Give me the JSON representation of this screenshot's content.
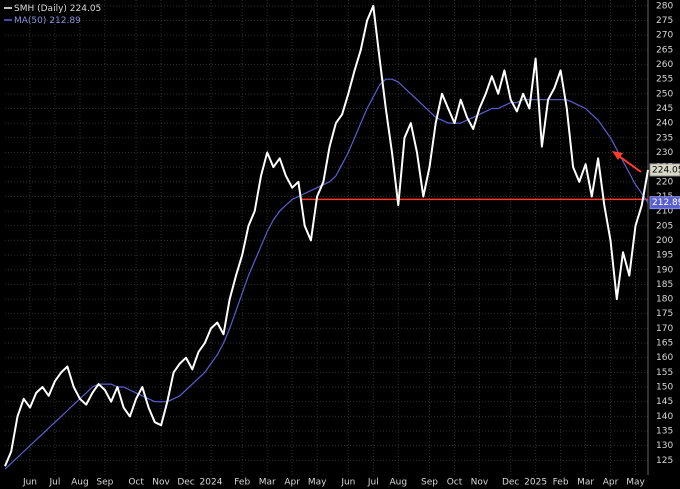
{
  "chart_data": {
    "type": "line",
    "categories": [
      null,
      null,
      null,
      null,
      "Jun",
      null,
      null,
      null,
      "Jul",
      null,
      null,
      null,
      "Aug",
      null,
      null,
      null,
      "Sep",
      null,
      null,
      null,
      null,
      "Oct",
      null,
      null,
      null,
      "Nov",
      null,
      null,
      null,
      "Dec",
      null,
      null,
      null,
      "2024",
      null,
      null,
      null,
      null,
      "Feb",
      null,
      null,
      null,
      "Mar",
      null,
      null,
      null,
      "Apr",
      null,
      null,
      null,
      "May",
      null,
      null,
      null,
      null,
      "Jun",
      null,
      null,
      null,
      "Jul",
      null,
      null,
      null,
      "Aug",
      null,
      null,
      null,
      null,
      "Sep",
      null,
      null,
      null,
      "Oct",
      null,
      null,
      null,
      "Nov",
      null,
      null,
      null,
      null,
      "Dec",
      null,
      null,
      null,
      "2025",
      null,
      null,
      null,
      "Feb",
      null,
      null,
      null,
      "Mar",
      null,
      null,
      null,
      "Apr",
      null,
      null,
      null,
      "May",
      null,
      null
    ],
    "series": [
      {
        "name": "SMH (Daily)",
        "color": "#ffffff",
        "values": [
          123,
          128,
          140,
          146,
          143,
          148,
          150,
          147,
          152,
          155,
          157,
          150,
          146,
          144,
          148,
          151,
          149,
          145,
          150,
          143,
          140,
          146,
          150,
          143,
          138,
          137,
          145,
          155,
          158,
          160,
          156,
          162,
          165,
          170,
          172,
          168,
          180,
          188,
          195,
          205,
          210,
          222,
          230,
          225,
          228,
          222,
          218,
          220,
          205,
          200,
          215,
          220,
          232,
          240,
          243,
          250,
          258,
          265,
          275,
          280,
          262,
          245,
          230,
          212,
          235,
          240,
          230,
          215,
          225,
          240,
          250,
          245,
          240,
          248,
          242,
          238,
          245,
          250,
          256,
          250,
          258,
          248,
          244,
          250,
          245,
          262,
          232,
          248,
          252,
          258,
          245,
          225,
          220,
          226,
          215,
          228,
          212,
          200,
          180,
          196,
          188,
          205,
          212,
          224.05
        ]
      },
      {
        "name": "MA(50)",
        "color": "#5a5fd0",
        "values": [
          122,
          124,
          126,
          128,
          130,
          132,
          134,
          136,
          138,
          140,
          142,
          144,
          146,
          148,
          150,
          151,
          151,
          151,
          150,
          150,
          149,
          148,
          147,
          146,
          145,
          145,
          145,
          146,
          147,
          149,
          151,
          153,
          155,
          158,
          161,
          165,
          170,
          176,
          182,
          188,
          193,
          198,
          203,
          207,
          210,
          212,
          214,
          215,
          216,
          217,
          218,
          219,
          220,
          222,
          226,
          230,
          235,
          240,
          245,
          249,
          253,
          255,
          255,
          254,
          252,
          250,
          248,
          246,
          244,
          242,
          241,
          240,
          240,
          240,
          241,
          242,
          243,
          244,
          245,
          245,
          246,
          247,
          247,
          248,
          248,
          248,
          248,
          248,
          248,
          248,
          248,
          247,
          246,
          245,
          243,
          241,
          238,
          235,
          231,
          227,
          223,
          219,
          216,
          212.89
        ]
      }
    ],
    "ylim": [
      120,
      282
    ],
    "yticks": [
      125,
      130,
      135,
      140,
      145,
      150,
      155,
      160,
      165,
      170,
      175,
      180,
      185,
      190,
      195,
      200,
      205,
      210,
      215,
      220,
      225,
      230,
      235,
      240,
      245,
      250,
      255,
      260,
      265,
      270,
      275,
      280
    ],
    "grid": true,
    "reference_line": {
      "value": 214,
      "color": "#ff3b30"
    }
  }
}
